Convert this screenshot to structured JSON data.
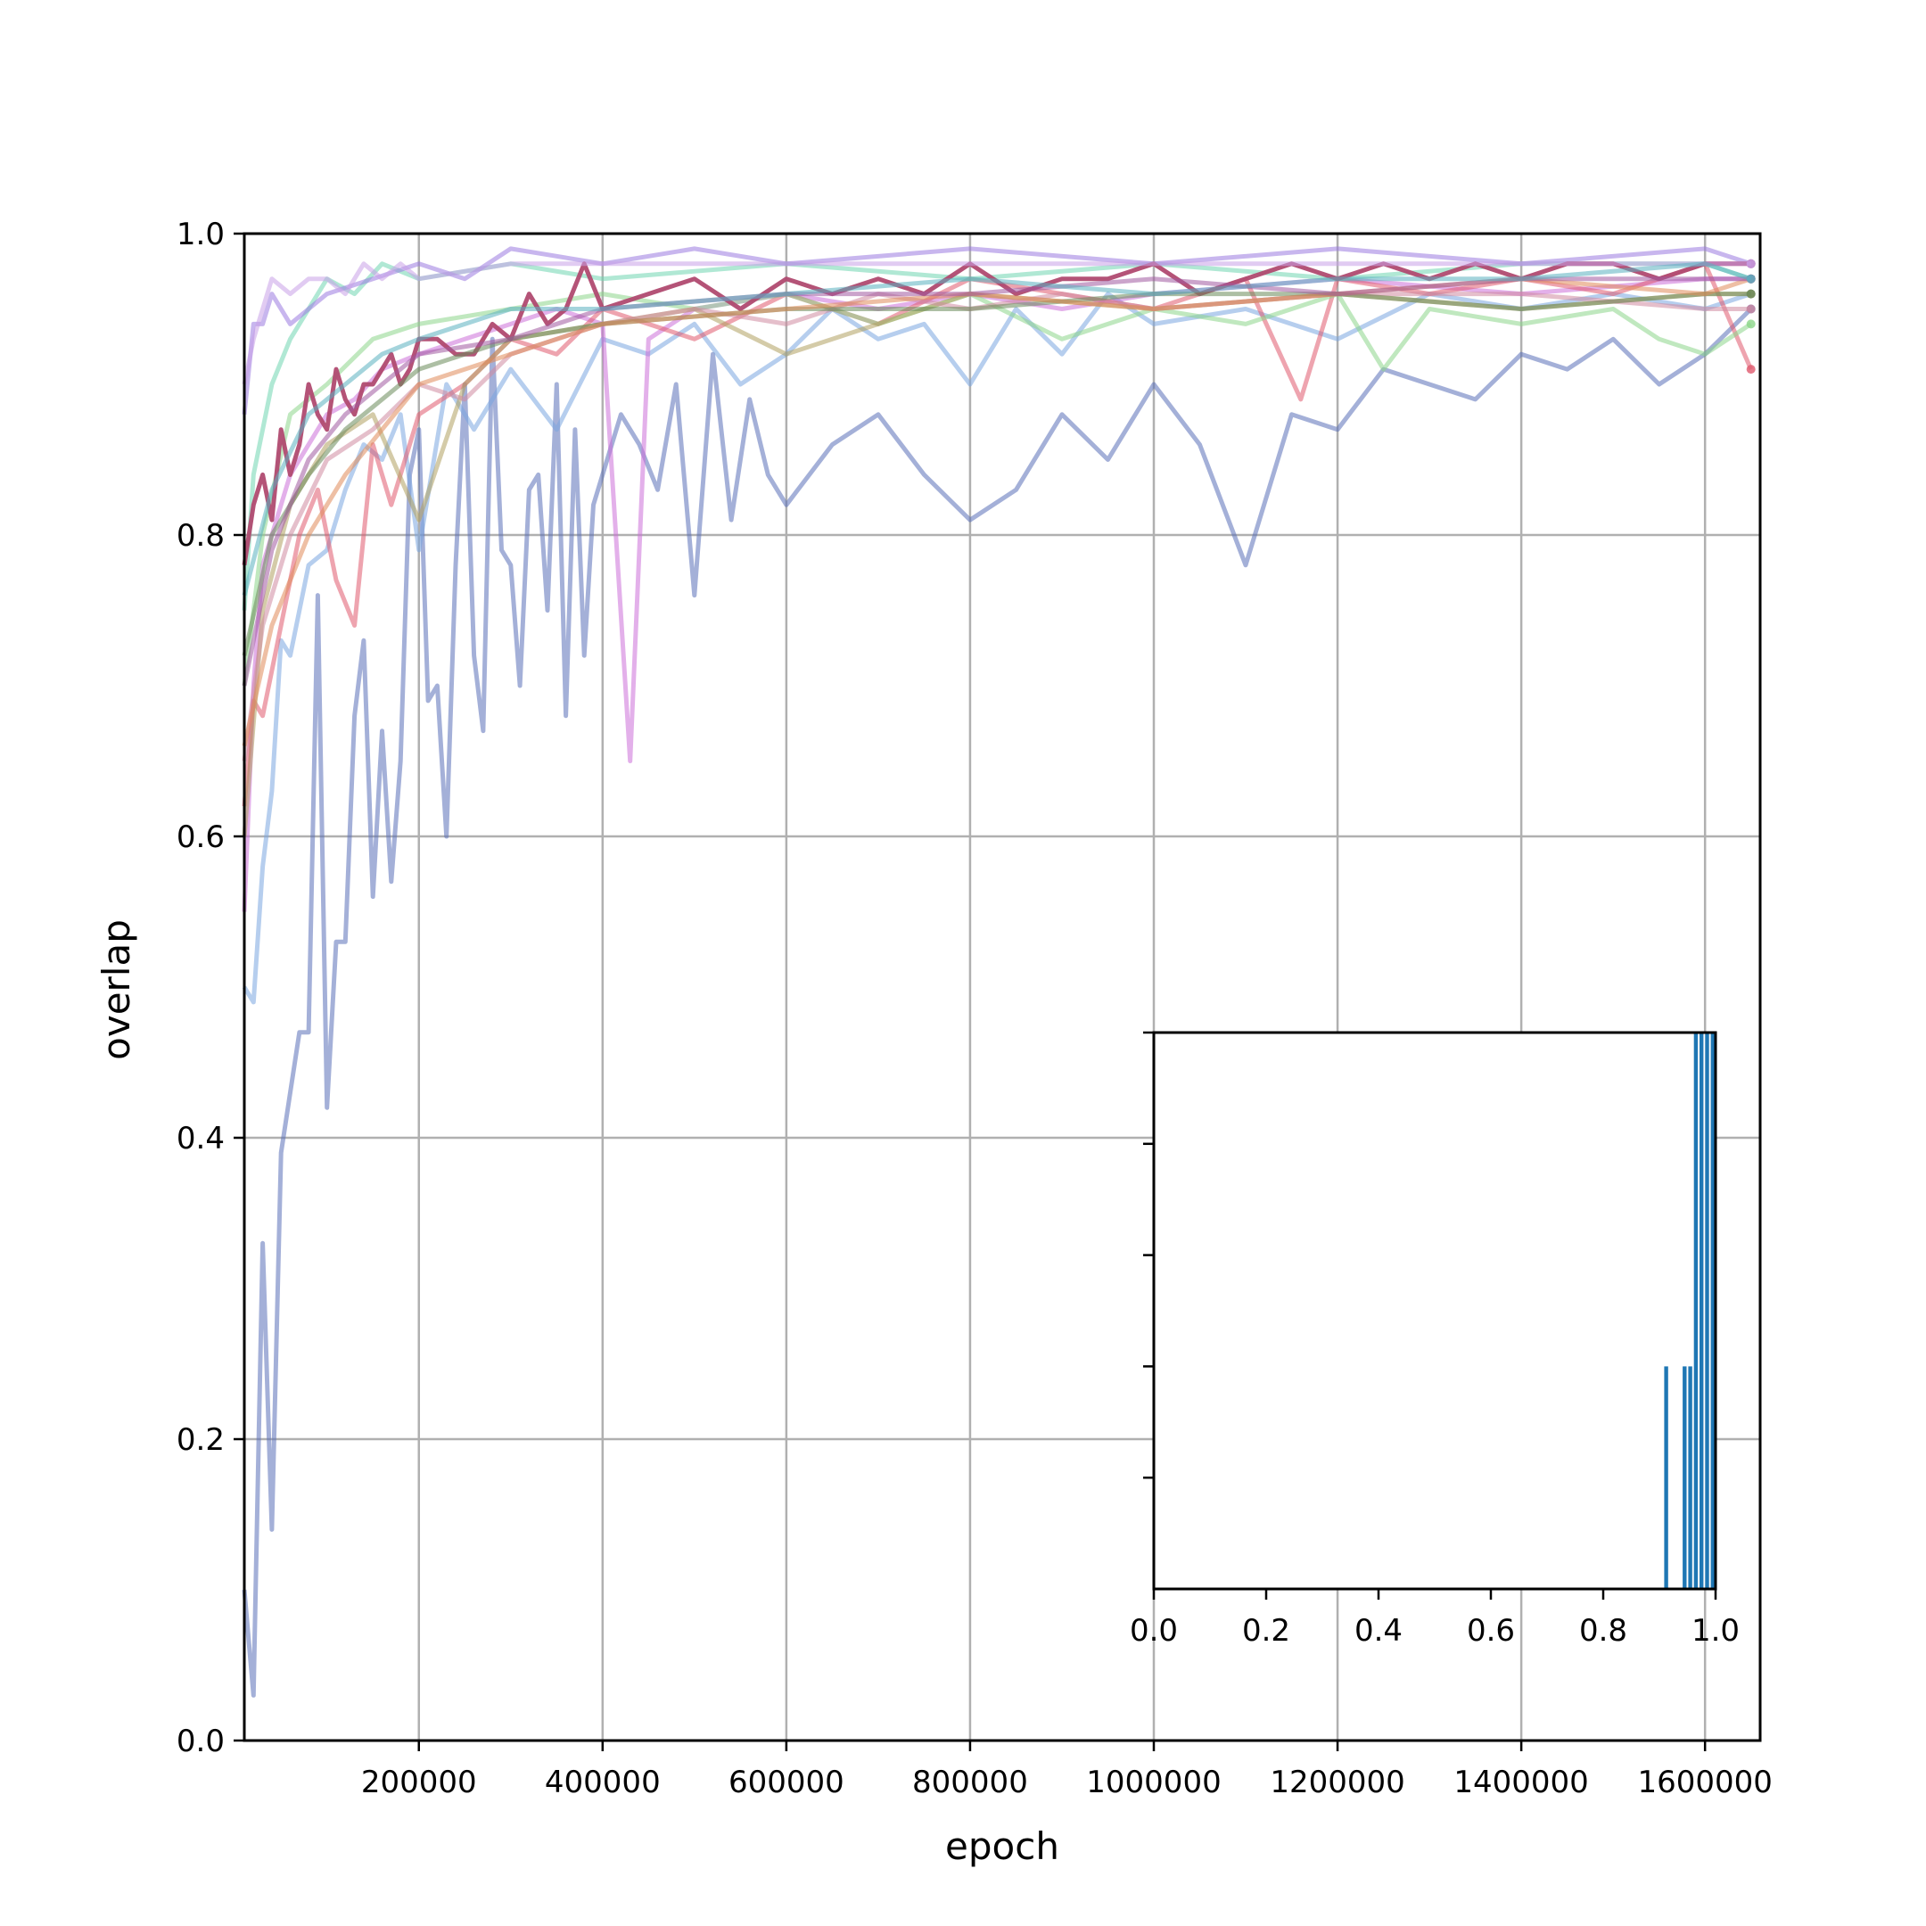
{
  "chart_data": [
    {
      "type": "line",
      "xlabel": "epoch",
      "ylabel": "overlap",
      "xlim": [
        10000,
        1660000
      ],
      "ylim": [
        0,
        1
      ],
      "xticks": [
        200000,
        400000,
        600000,
        800000,
        1000000,
        1200000,
        1400000,
        1600000
      ],
      "yticks": [
        0.0,
        0.2,
        0.4,
        0.6,
        0.8,
        1.0
      ],
      "xtick_labels": [
        "200000",
        "400000",
        "600000",
        "800000",
        "1000000",
        "1200000",
        "1400000",
        "1600000"
      ],
      "ytick_labels": [
        "0.0",
        "0.2",
        "0.4",
        "0.6",
        "0.8",
        "1.0"
      ],
      "grid": true,
      "series_colors": [
        "#5a6fb8",
        "#7aa6e0",
        "#cc6fd8",
        "#e05a6e",
        "#8cd68a",
        "#b0a060",
        "#6fd6b0",
        "#9a7ae0",
        "#b04a70",
        "#d08aa0",
        "#c8a0e8",
        "#6a8a5a",
        "#e08a5a",
        "#a05aa0",
        "#5ab0c0"
      ],
      "series": [
        {
          "x": [
            10000,
            20000,
            30000,
            40000,
            50000,
            60000,
            70000,
            80000,
            90000,
            100000,
            110000,
            120000,
            130000,
            140000,
            150000,
            160000,
            170000,
            180000,
            190000,
            200000,
            210000,
            220000,
            230000,
            240000,
            250000,
            260000,
            270000,
            280000,
            290000,
            300000,
            310000,
            320000,
            330000,
            340000,
            350000,
            360000,
            370000,
            380000,
            390000,
            400000,
            420000,
            440000,
            460000,
            480000,
            500000,
            520000,
            540000,
            560000,
            580000,
            600000,
            650000,
            700000,
            750000,
            800000,
            850000,
            900000,
            950000,
            1000000,
            1050000,
            1100000,
            1150000,
            1200000,
            1250000,
            1300000,
            1350000,
            1400000,
            1450000,
            1500000,
            1550000,
            1600000,
            1650000
          ],
          "y": [
            0.1,
            0.03,
            0.33,
            0.14,
            0.39,
            0.43,
            0.47,
            0.47,
            0.76,
            0.42,
            0.53,
            0.53,
            0.68,
            0.73,
            0.56,
            0.67,
            0.57,
            0.65,
            0.84,
            0.87,
            0.69,
            0.7,
            0.6,
            0.78,
            0.9,
            0.72,
            0.67,
            0.93,
            0.79,
            0.78,
            0.7,
            0.83,
            0.84,
            0.75,
            0.9,
            0.68,
            0.87,
            0.72,
            0.82,
            0.84,
            0.88,
            0.86,
            0.83,
            0.9,
            0.76,
            0.92,
            0.81,
            0.89,
            0.84,
            0.82,
            0.86,
            0.88,
            0.84,
            0.81,
            0.83,
            0.88,
            0.85,
            0.9,
            0.86,
            0.78,
            0.88,
            0.87,
            0.91,
            0.9,
            0.89,
            0.92,
            0.91,
            0.93,
            0.9,
            0.92,
            0.95
          ]
        },
        {
          "x": [
            10000,
            20000,
            30000,
            40000,
            50000,
            60000,
            80000,
            100000,
            120000,
            140000,
            160000,
            180000,
            200000,
            230000,
            260000,
            300000,
            350000,
            400000,
            450000,
            500000,
            550000,
            600000,
            650000,
            700000,
            750000,
            800000,
            850000,
            900000,
            950000,
            1000000,
            1100000,
            1200000,
            1300000,
            1400000,
            1500000,
            1600000,
            1650000
          ],
          "y": [
            0.5,
            0.49,
            0.58,
            0.63,
            0.73,
            0.72,
            0.78,
            0.79,
            0.83,
            0.86,
            0.85,
            0.88,
            0.79,
            0.9,
            0.87,
            0.91,
            0.87,
            0.93,
            0.92,
            0.94,
            0.9,
            0.92,
            0.95,
            0.93,
            0.94,
            0.9,
            0.95,
            0.92,
            0.96,
            0.94,
            0.95,
            0.93,
            0.96,
            0.95,
            0.96,
            0.95,
            0.96
          ]
        },
        {
          "x": [
            10000,
            20000,
            30000,
            40000,
            60000,
            80000,
            100000,
            130000,
            160000,
            200000,
            250000,
            300000,
            350000,
            400000,
            430000,
            450000,
            500000,
            600000,
            700000,
            800000,
            900000,
            1000000,
            1200000,
            1400000,
            1600000,
            1650000
          ],
          "y": [
            0.55,
            0.7,
            0.78,
            0.8,
            0.84,
            0.86,
            0.88,
            0.89,
            0.91,
            0.92,
            0.93,
            0.94,
            0.95,
            0.94,
            0.65,
            0.93,
            0.95,
            0.96,
            0.95,
            0.96,
            0.95,
            0.96,
            0.97,
            0.96,
            0.97,
            0.97
          ]
        },
        {
          "x": [
            10000,
            20000,
            30000,
            50000,
            70000,
            90000,
            110000,
            130000,
            150000,
            170000,
            200000,
            250000,
            300000,
            350000,
            400000,
            500000,
            600000,
            700000,
            800000,
            900000,
            1000000,
            1100000,
            1160000,
            1200000,
            1300000,
            1400000,
            1500000,
            1600000,
            1650000
          ],
          "y": [
            0.62,
            0.69,
            0.68,
            0.74,
            0.8,
            0.83,
            0.77,
            0.74,
            0.86,
            0.82,
            0.88,
            0.9,
            0.93,
            0.92,
            0.95,
            0.93,
            0.96,
            0.94,
            0.97,
            0.96,
            0.95,
            0.97,
            0.89,
            0.97,
            0.96,
            0.97,
            0.96,
            0.98,
            0.91
          ]
        },
        {
          "x": [
            10000,
            30000,
            60000,
            100000,
            150000,
            200000,
            300000,
            400000,
            500000,
            600000,
            700000,
            800000,
            900000,
            1000000,
            1100000,
            1200000,
            1250000,
            1300000,
            1400000,
            1500000,
            1550000,
            1600000,
            1650000
          ],
          "y": [
            0.7,
            0.8,
            0.88,
            0.9,
            0.93,
            0.94,
            0.95,
            0.96,
            0.95,
            0.96,
            0.94,
            0.96,
            0.93,
            0.95,
            0.94,
            0.96,
            0.91,
            0.95,
            0.94,
            0.95,
            0.93,
            0.92,
            0.94
          ]
        },
        {
          "x": [
            10000,
            30000,
            60000,
            100000,
            150000,
            200000,
            250000,
            300000,
            400000,
            500000,
            600000,
            800000,
            1000000,
            1200000,
            1400000,
            1600000,
            1650000
          ],
          "y": [
            0.6,
            0.75,
            0.82,
            0.86,
            0.88,
            0.81,
            0.9,
            0.93,
            0.94,
            0.95,
            0.92,
            0.96,
            0.95,
            0.96,
            0.95,
            0.96,
            0.96
          ]
        },
        {
          "x": [
            10000,
            20000,
            40000,
            60000,
            80000,
            100000,
            130000,
            160000,
            200000,
            300000,
            400000,
            600000,
            800000,
            1000000,
            1200000,
            1400000,
            1600000,
            1650000
          ],
          "y": [
            0.75,
            0.84,
            0.9,
            0.93,
            0.95,
            0.97,
            0.96,
            0.98,
            0.97,
            0.98,
            0.97,
            0.98,
            0.97,
            0.98,
            0.97,
            0.98,
            0.98,
            0.97
          ]
        },
        {
          "x": [
            10000,
            20000,
            30000,
            40000,
            60000,
            80000,
            100000,
            150000,
            200000,
            250000,
            300000,
            400000,
            500000,
            600000,
            800000,
            1000000,
            1200000,
            1400000,
            1600000,
            1650000
          ],
          "y": [
            0.88,
            0.94,
            0.94,
            0.96,
            0.94,
            0.95,
            0.96,
            0.97,
            0.98,
            0.97,
            0.99,
            0.98,
            0.99,
            0.98,
            0.99,
            0.98,
            0.99,
            0.98,
            0.99,
            0.98
          ]
        },
        {
          "x": [
            10000,
            20000,
            30000,
            40000,
            50000,
            60000,
            70000,
            80000,
            90000,
            100000,
            110000,
            120000,
            130000,
            140000,
            150000,
            160000,
            170000,
            180000,
            190000,
            200000,
            220000,
            240000,
            260000,
            280000,
            300000,
            320000,
            340000,
            360000,
            380000,
            400000,
            450000,
            500000,
            550000,
            600000,
            650000,
            700000,
            750000,
            800000,
            850000,
            900000,
            950000,
            1000000,
            1050000,
            1100000,
            1150000,
            1200000,
            1250000,
            1300000,
            1350000,
            1400000,
            1450000,
            1500000,
            1550000,
            1600000,
            1650000
          ],
          "y": [
            0.78,
            0.82,
            0.84,
            0.81,
            0.87,
            0.84,
            0.86,
            0.9,
            0.88,
            0.87,
            0.91,
            0.89,
            0.88,
            0.9,
            0.9,
            0.91,
            0.92,
            0.9,
            0.91,
            0.93,
            0.93,
            0.92,
            0.92,
            0.94,
            0.93,
            0.96,
            0.94,
            0.95,
            0.98,
            0.95,
            0.96,
            0.97,
            0.95,
            0.97,
            0.96,
            0.97,
            0.96,
            0.98,
            0.96,
            0.97,
            0.97,
            0.98,
            0.96,
            0.97,
            0.98,
            0.97,
            0.98,
            0.97,
            0.98,
            0.97,
            0.98,
            0.98,
            0.97,
            0.98,
            0.98
          ]
        },
        {
          "x": [
            10000,
            30000,
            60000,
            100000,
            150000,
            200000,
            250000,
            300000,
            400000,
            500000,
            600000,
            700000,
            800000,
            900000,
            1000000,
            1200000,
            1400000,
            1600000,
            1650000
          ],
          "y": [
            0.65,
            0.74,
            0.8,
            0.85,
            0.87,
            0.9,
            0.89,
            0.92,
            0.94,
            0.95,
            0.94,
            0.96,
            0.95,
            0.96,
            0.95,
            0.96,
            0.96,
            0.95,
            0.95
          ]
        },
        {
          "x": [
            10000,
            20000,
            40000,
            60000,
            80000,
            100000,
            120000,
            140000,
            160000,
            180000,
            200000,
            300000,
            400000,
            600000,
            800000,
            1000000,
            1200000,
            1400000,
            1600000,
            1650000
          ],
          "y": [
            0.9,
            0.93,
            0.97,
            0.96,
            0.97,
            0.97,
            0.96,
            0.98,
            0.97,
            0.98,
            0.97,
            0.98,
            0.98,
            0.98,
            0.98,
            0.98,
            0.98,
            0.98,
            0.98,
            0.98
          ]
        },
        {
          "x": [
            10000,
            40000,
            80000,
            120000,
            160000,
            200000,
            300000,
            400000,
            600000,
            800000,
            1000000,
            1200000,
            1400000,
            1600000,
            1650000
          ],
          "y": [
            0.72,
            0.8,
            0.84,
            0.87,
            0.89,
            0.91,
            0.93,
            0.94,
            0.95,
            0.95,
            0.96,
            0.96,
            0.95,
            0.96,
            0.96
          ]
        },
        {
          "x": [
            10000,
            40000,
            80000,
            120000,
            160000,
            200000,
            300000,
            400000,
            600000,
            800000,
            1000000,
            1200000,
            1400000,
            1600000,
            1650000
          ],
          "y": [
            0.66,
            0.74,
            0.8,
            0.84,
            0.87,
            0.9,
            0.92,
            0.94,
            0.95,
            0.96,
            0.95,
            0.96,
            0.97,
            0.96,
            0.97
          ]
        },
        {
          "x": [
            10000,
            40000,
            80000,
            120000,
            160000,
            200000,
            300000,
            400000,
            600000,
            800000,
            1000000,
            1200000,
            1400000,
            1600000,
            1650000
          ],
          "y": [
            0.7,
            0.79,
            0.85,
            0.88,
            0.9,
            0.92,
            0.93,
            0.95,
            0.96,
            0.96,
            0.97,
            0.96,
            0.97,
            0.97,
            0.97
          ]
        },
        {
          "x": [
            10000,
            40000,
            80000,
            120000,
            160000,
            200000,
            300000,
            400000,
            600000,
            800000,
            1000000,
            1200000,
            1400000,
            1600000,
            1650000
          ],
          "y": [
            0.76,
            0.83,
            0.88,
            0.9,
            0.92,
            0.93,
            0.95,
            0.95,
            0.96,
            0.97,
            0.96,
            0.97,
            0.97,
            0.98,
            0.97
          ]
        }
      ]
    },
    {
      "type": "bar",
      "xlim": [
        0,
        1
      ],
      "xticks": [
        0.0,
        0.2,
        0.4,
        0.6,
        0.8,
        1.0
      ],
      "xtick_labels": [
        "0.0",
        "0.2",
        "0.4",
        "0.6",
        "0.8",
        "1.0"
      ],
      "ylim": [
        0,
        5
      ],
      "yticks": [
        1,
        2,
        3,
        4,
        5
      ],
      "bar_color": "#1f77b4",
      "bins": [
        0.912,
        0.945,
        0.955,
        0.965,
        0.975,
        0.985,
        0.995
      ],
      "bin_width": 0.007,
      "values": [
        2,
        2,
        2,
        5,
        5,
        5,
        5
      ]
    }
  ]
}
